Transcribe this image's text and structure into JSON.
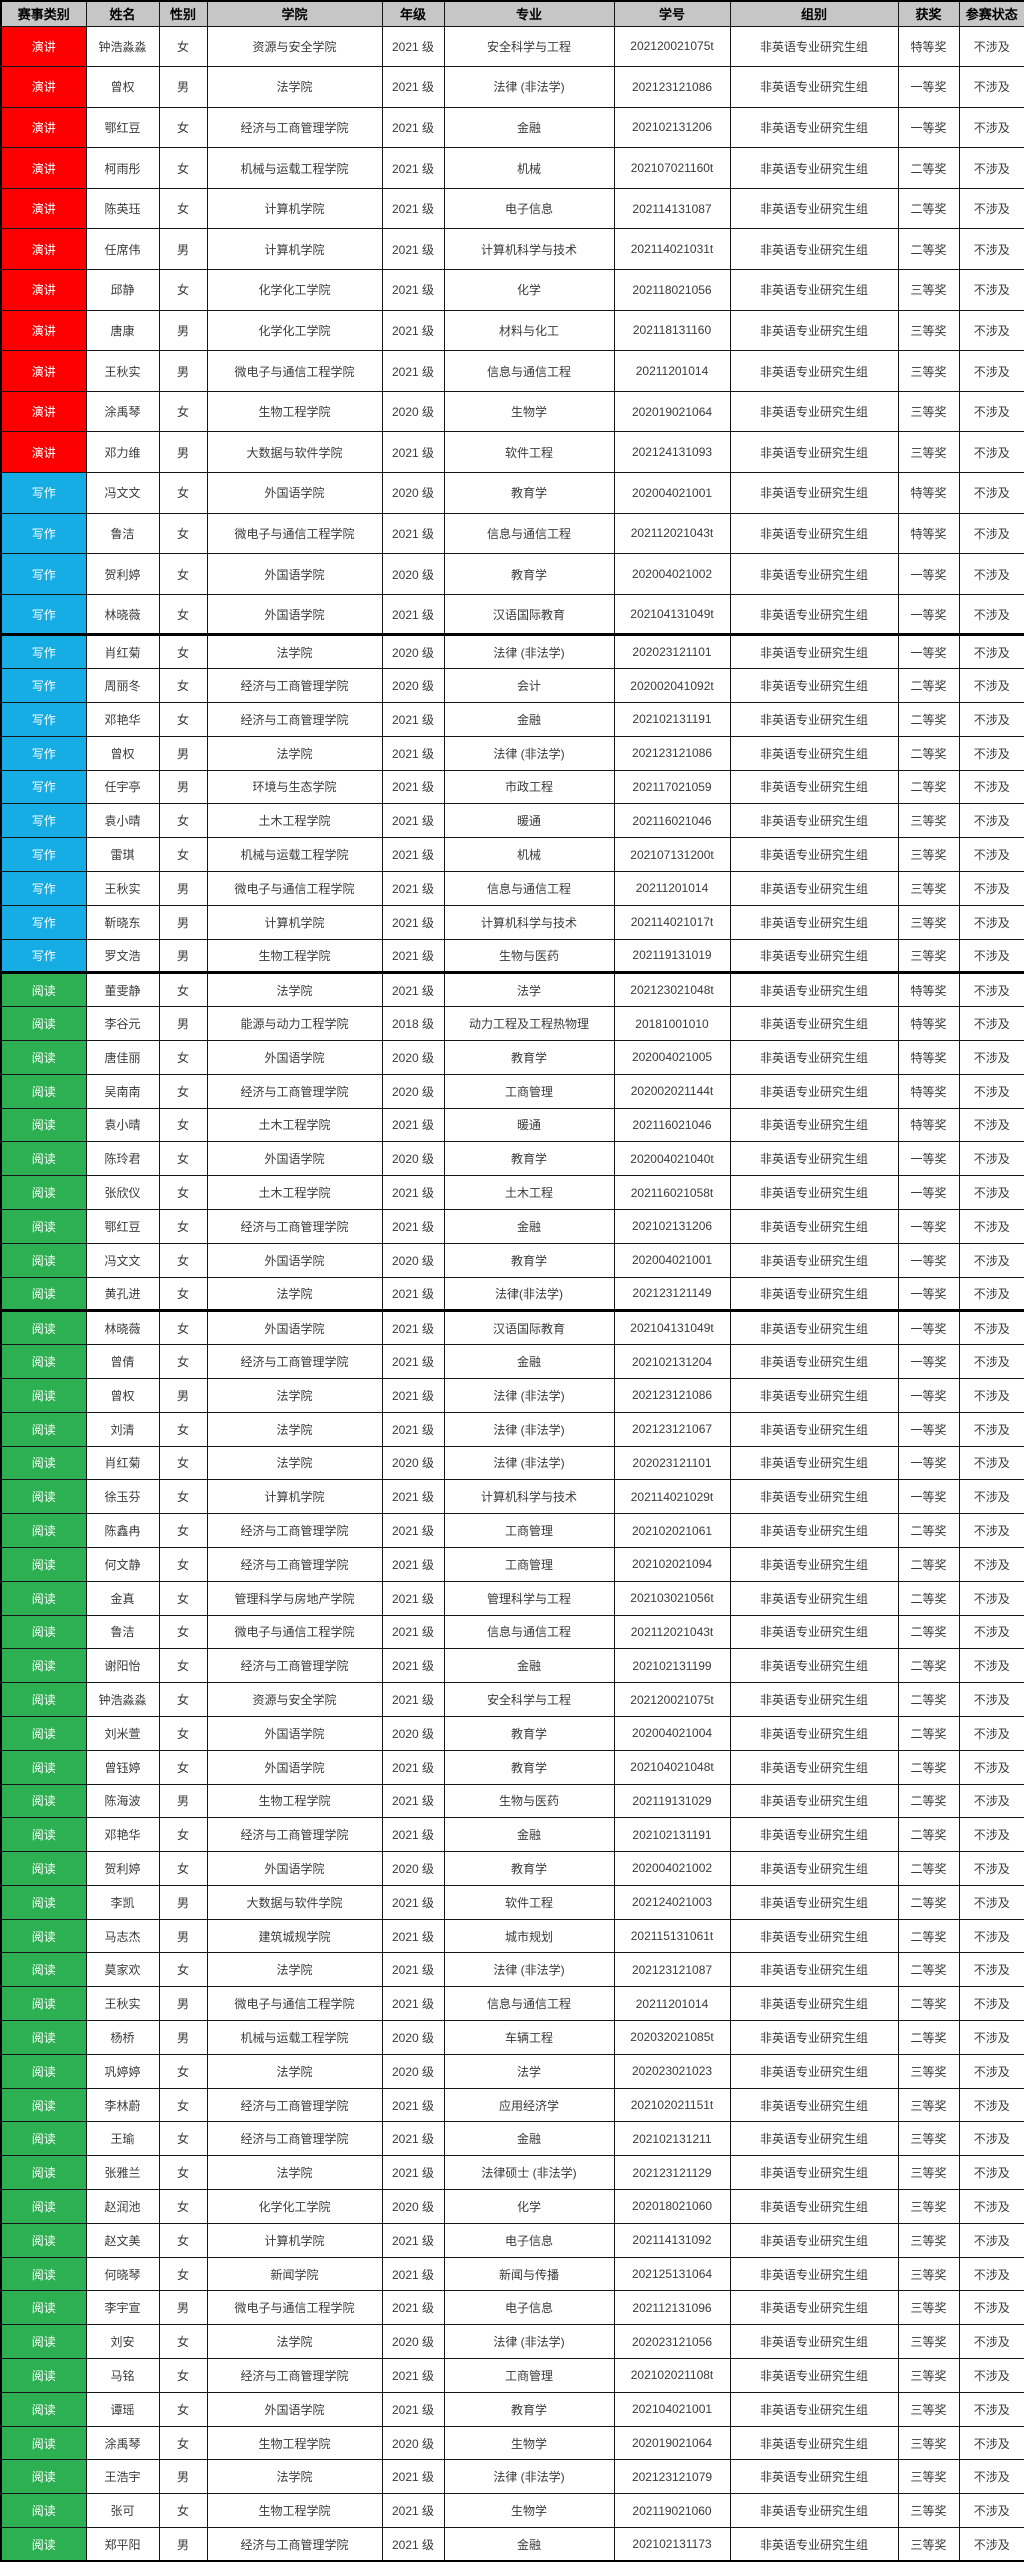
{
  "colors": {
    "header_bg": "#C6C6C6",
    "border": "#161616",
    "cell_text": "#3A3A3A",
    "category_text": "#FFFFFF",
    "page_bg": "#FFFFFF"
  },
  "category_colors": {
    "演讲": "#FC0000",
    "写作": "#16ACE4",
    "阅读": "#2DB052"
  },
  "table": {
    "headers": [
      "赛事类别",
      "姓名",
      "性别",
      "学院",
      "年级",
      "专业",
      "学号",
      "组别",
      "获奖",
      "参赛状态"
    ],
    "rows": [
      [
        "演讲",
        "钟浩淼淼",
        "女",
        "资源与安全学院",
        "2021 级",
        "安全科学与工程",
        "202120021075t",
        "非英语专业研究生组",
        "特等奖",
        "不涉及"
      ],
      [
        "演讲",
        "曾权",
        "男",
        "法学院",
        "2021 级",
        "法律 (非法学)",
        "202123121086",
        "非英语专业研究生组",
        "一等奖",
        "不涉及"
      ],
      [
        "演讲",
        "鄂红豆",
        "女",
        "经济与工商管理学院",
        "2021 级",
        "金融",
        "202102131206",
        "非英语专业研究生组",
        "一等奖",
        "不涉及"
      ],
      [
        "演讲",
        "柯雨彤",
        "女",
        "机械与运载工程学院",
        "2021 级",
        "机械",
        "202107021160t",
        "非英语专业研究生组",
        "二等奖",
        "不涉及"
      ],
      [
        "演讲",
        "陈英珏",
        "女",
        "计算机学院",
        "2021 级",
        "电子信息",
        "202114131087",
        "非英语专业研究生组",
        "二等奖",
        "不涉及"
      ],
      [
        "演讲",
        "任席伟",
        "男",
        "计算机学院",
        "2021 级",
        "计算机科学与技术",
        "202114021031t",
        "非英语专业研究生组",
        "二等奖",
        "不涉及"
      ],
      [
        "演讲",
        "邱静",
        "女",
        "化学化工学院",
        "2021 级",
        "化学",
        "202118021056",
        "非英语专业研究生组",
        "三等奖",
        "不涉及"
      ],
      [
        "演讲",
        "唐康",
        "男",
        "化学化工学院",
        "2021 级",
        "材料与化工",
        "202118131160",
        "非英语专业研究生组",
        "三等奖",
        "不涉及"
      ],
      [
        "演讲",
        "王秋实",
        "男",
        "微电子与通信工程学院",
        "2021 级",
        "信息与通信工程",
        "20211201014",
        "非英语专业研究生组",
        "三等奖",
        "不涉及"
      ],
      [
        "演讲",
        "涂禹琴",
        "女",
        "生物工程学院",
        "2020 级",
        "生物学",
        "202019021064",
        "非英语专业研究生组",
        "三等奖",
        "不涉及"
      ],
      [
        "演讲",
        "邓力维",
        "男",
        "大数据与软件学院",
        "2021 级",
        "软件工程",
        "202124131093",
        "非英语专业研究生组",
        "三等奖",
        "不涉及"
      ],
      [
        "写作",
        "冯文文",
        "女",
        "外国语学院",
        "2020 级",
        "教育学",
        "202004021001",
        "非英语专业研究生组",
        "特等奖",
        "不涉及"
      ],
      [
        "写作",
        "鲁洁",
        "女",
        "微电子与通信工程学院",
        "2021 级",
        "信息与通信工程",
        "202112021043t",
        "非英语专业研究生组",
        "特等奖",
        "不涉及"
      ],
      [
        "写作",
        "贺利婷",
        "女",
        "外国语学院",
        "2020 级",
        "教育学",
        "202004021002",
        "非英语专业研究生组",
        "一等奖",
        "不涉及"
      ],
      [
        "写作",
        "林晓薇",
        "女",
        "外国语学院",
        "2021 级",
        "汉语国际教育",
        "202104131049t",
        "非英语专业研究生组",
        "一等奖",
        "不涉及"
      ],
      [
        "写作",
        "肖红菊",
        "女",
        "法学院",
        "2020 级",
        "法律 (非法学)",
        "202023121101",
        "非英语专业研究生组",
        "一等奖",
        "不涉及"
      ],
      [
        "写作",
        "周丽冬",
        "女",
        "经济与工商管理学院",
        "2020 级",
        "会计",
        "202002041092t",
        "非英语专业研究生组",
        "二等奖",
        "不涉及"
      ],
      [
        "写作",
        "邓艳华",
        "女",
        "经济与工商管理学院",
        "2021 级",
        "金融",
        "202102131191",
        "非英语专业研究生组",
        "二等奖",
        "不涉及"
      ],
      [
        "写作",
        "曾权",
        "男",
        "法学院",
        "2021 级",
        "法律 (非法学)",
        "202123121086",
        "非英语专业研究生组",
        "二等奖",
        "不涉及"
      ],
      [
        "写作",
        "任宇亭",
        "男",
        "环境与生态学院",
        "2021 级",
        "市政工程",
        "202117021059",
        "非英语专业研究生组",
        "二等奖",
        "不涉及"
      ],
      [
        "写作",
        "袁小晴",
        "女",
        "土木工程学院",
        "2021 级",
        "暖通",
        "202116021046",
        "非英语专业研究生组",
        "三等奖",
        "不涉及"
      ],
      [
        "写作",
        "雷琪",
        "女",
        "机械与运载工程学院",
        "2021 级",
        "机械",
        "202107131200t",
        "非英语专业研究生组",
        "三等奖",
        "不涉及"
      ],
      [
        "写作",
        "王秋实",
        "男",
        "微电子与通信工程学院",
        "2021 级",
        "信息与通信工程",
        "20211201014",
        "非英语专业研究生组",
        "三等奖",
        "不涉及"
      ],
      [
        "写作",
        "靳晓东",
        "男",
        "计算机学院",
        "2021 级",
        "计算机科学与技术",
        "202114021017t",
        "非英语专业研究生组",
        "三等奖",
        "不涉及"
      ],
      [
        "写作",
        "罗文浩",
        "男",
        "生物工程学院",
        "2021 级",
        "生物与医药",
        "202119131019",
        "非英语专业研究生组",
        "三等奖",
        "不涉及"
      ],
      [
        "阅读",
        "董雯静",
        "女",
        "法学院",
        "2021 级",
        "法学",
        "202123021048t",
        "非英语专业研究生组",
        "特等奖",
        "不涉及"
      ],
      [
        "阅读",
        "李谷元",
        "男",
        "能源与动力工程学院",
        "2018 级",
        "动力工程及工程热物理",
        "20181001010",
        "非英语专业研究生组",
        "特等奖",
        "不涉及"
      ],
      [
        "阅读",
        "唐佳丽",
        "女",
        "外国语学院",
        "2020 级",
        "教育学",
        "202004021005",
        "非英语专业研究生组",
        "特等奖",
        "不涉及"
      ],
      [
        "阅读",
        "吴南南",
        "女",
        "经济与工商管理学院",
        "2020 级",
        "工商管理",
        "202002021144t",
        "非英语专业研究生组",
        "特等奖",
        "不涉及"
      ],
      [
        "阅读",
        "袁小晴",
        "女",
        "土木工程学院",
        "2021 级",
        "暖通",
        "202116021046",
        "非英语专业研究生组",
        "特等奖",
        "不涉及"
      ],
      [
        "阅读",
        "陈玲君",
        "女",
        "外国语学院",
        "2020 级",
        "教育学",
        "202004021040t",
        "非英语专业研究生组",
        "一等奖",
        "不涉及"
      ],
      [
        "阅读",
        "张欣仪",
        "女",
        "土木工程学院",
        "2021 级",
        "土木工程",
        "202116021058t",
        "非英语专业研究生组",
        "一等奖",
        "不涉及"
      ],
      [
        "阅读",
        "鄂红豆",
        "女",
        "经济与工商管理学院",
        "2021 级",
        "金融",
        "202102131206",
        "非英语专业研究生组",
        "一等奖",
        "不涉及"
      ],
      [
        "阅读",
        "冯文文",
        "女",
        "外国语学院",
        "2020 级",
        "教育学",
        "202004021001",
        "非英语专业研究生组",
        "一等奖",
        "不涉及"
      ],
      [
        "阅读",
        "黄孔进",
        "女",
        "法学院",
        "2021 级",
        "法律(非法学)",
        "202123121149",
        "非英语专业研究生组",
        "一等奖",
        "不涉及"
      ],
      [
        "阅读",
        "林晓薇",
        "女",
        "外国语学院",
        "2021 级",
        "汉语国际教育",
        "202104131049t",
        "非英语专业研究生组",
        "一等奖",
        "不涉及"
      ],
      [
        "阅读",
        "曾倩",
        "女",
        "经济与工商管理学院",
        "2021 级",
        "金融",
        "202102131204",
        "非英语专业研究生组",
        "一等奖",
        "不涉及"
      ],
      [
        "阅读",
        "曾权",
        "男",
        "法学院",
        "2021 级",
        "法律 (非法学)",
        "202123121086",
        "非英语专业研究生组",
        "一等奖",
        "不涉及"
      ],
      [
        "阅读",
        "刘清",
        "女",
        "法学院",
        "2021 级",
        "法律 (非法学)",
        "202123121067",
        "非英语专业研究生组",
        "一等奖",
        "不涉及"
      ],
      [
        "阅读",
        "肖红菊",
        "女",
        "法学院",
        "2020 级",
        "法律 (非法学)",
        "202023121101",
        "非英语专业研究生组",
        "一等奖",
        "不涉及"
      ],
      [
        "阅读",
        "徐玉芬",
        "女",
        "计算机学院",
        "2021 级",
        "计算机科学与技术",
        "202114021029t",
        "非英语专业研究生组",
        "一等奖",
        "不涉及"
      ],
      [
        "阅读",
        "陈鑫冉",
        "女",
        "经济与工商管理学院",
        "2021 级",
        "工商管理",
        "202102021061",
        "非英语专业研究生组",
        "二等奖",
        "不涉及"
      ],
      [
        "阅读",
        "何文静",
        "女",
        "经济与工商管理学院",
        "2021 级",
        "工商管理",
        "202102021094",
        "非英语专业研究生组",
        "二等奖",
        "不涉及"
      ],
      [
        "阅读",
        "金真",
        "女",
        "管理科学与房地产学院",
        "2021 级",
        "管理科学与工程",
        "202103021056t",
        "非英语专业研究生组",
        "二等奖",
        "不涉及"
      ],
      [
        "阅读",
        "鲁洁",
        "女",
        "微电子与通信工程学院",
        "2021 级",
        "信息与通信工程",
        "202112021043t",
        "非英语专业研究生组",
        "二等奖",
        "不涉及"
      ],
      [
        "阅读",
        "谢阳怡",
        "女",
        "经济与工商管理学院",
        "2021 级",
        "金融",
        "202102131199",
        "非英语专业研究生组",
        "二等奖",
        "不涉及"
      ],
      [
        "阅读",
        "钟浩淼淼",
        "女",
        "资源与安全学院",
        "2021 级",
        "安全科学与工程",
        "202120021075t",
        "非英语专业研究生组",
        "二等奖",
        "不涉及"
      ],
      [
        "阅读",
        "刘米萱",
        "女",
        "外国语学院",
        "2020 级",
        "教育学",
        "202004021004",
        "非英语专业研究生组",
        "二等奖",
        "不涉及"
      ],
      [
        "阅读",
        "曾钰婷",
        "女",
        "外国语学院",
        "2021 级",
        "教育学",
        "202104021048t",
        "非英语专业研究生组",
        "二等奖",
        "不涉及"
      ],
      [
        "阅读",
        "陈海波",
        "男",
        "生物工程学院",
        "2021 级",
        "生物与医药",
        "202119131029",
        "非英语专业研究生组",
        "二等奖",
        "不涉及"
      ],
      [
        "阅读",
        "邓艳华",
        "女",
        "经济与工商管理学院",
        "2021 级",
        "金融",
        "202102131191",
        "非英语专业研究生组",
        "二等奖",
        "不涉及"
      ],
      [
        "阅读",
        "贺利婷",
        "女",
        "外国语学院",
        "2020 级",
        "教育学",
        "202004021002",
        "非英语专业研究生组",
        "二等奖",
        "不涉及"
      ],
      [
        "阅读",
        "李凯",
        "男",
        "大数据与软件学院",
        "2021 级",
        "软件工程",
        "202124021003",
        "非英语专业研究生组",
        "二等奖",
        "不涉及"
      ],
      [
        "阅读",
        "马志杰",
        "男",
        "建筑城规学院",
        "2021 级",
        "城市规划",
        "202115131061t",
        "非英语专业研究生组",
        "二等奖",
        "不涉及"
      ],
      [
        "阅读",
        "莫家欢",
        "女",
        "法学院",
        "2021 级",
        "法律 (非法学)",
        "202123121087",
        "非英语专业研究生组",
        "二等奖",
        "不涉及"
      ],
      [
        "阅读",
        "王秋实",
        "男",
        "微电子与通信工程学院",
        "2021 级",
        "信息与通信工程",
        "20211201014",
        "非英语专业研究生组",
        "二等奖",
        "不涉及"
      ],
      [
        "阅读",
        "杨桥",
        "男",
        "机械与运载工程学院",
        "2020 级",
        "车辆工程",
        "202032021085t",
        "非英语专业研究生组",
        "二等奖",
        "不涉及"
      ],
      [
        "阅读",
        "巩婷婷",
        "女",
        "法学院",
        "2020 级",
        "法学",
        "202023021023",
        "非英语专业研究生组",
        "三等奖",
        "不涉及"
      ],
      [
        "阅读",
        "李林蔚",
        "女",
        "经济与工商管理学院",
        "2021 级",
        "应用经济学",
        "202102021151t",
        "非英语专业研究生组",
        "三等奖",
        "不涉及"
      ],
      [
        "阅读",
        "王瑜",
        "女",
        "经济与工商管理学院",
        "2021 级",
        "金融",
        "202102131211",
        "非英语专业研究生组",
        "三等奖",
        "不涉及"
      ],
      [
        "阅读",
        "张雅兰",
        "女",
        "法学院",
        "2021 级",
        "法律硕士 (非法学)",
        "202123121129",
        "非英语专业研究生组",
        "三等奖",
        "不涉及"
      ],
      [
        "阅读",
        "赵润池",
        "女",
        "化学化工学院",
        "2020 级",
        "化学",
        "202018021060",
        "非英语专业研究生组",
        "三等奖",
        "不涉及"
      ],
      [
        "阅读",
        "赵文美",
        "女",
        "计算机学院",
        "2021 级",
        "电子信息",
        "202114131092",
        "非英语专业研究生组",
        "三等奖",
        "不涉及"
      ],
      [
        "阅读",
        "何晓琴",
        "女",
        "新闻学院",
        "2021 级",
        "新闻与传播",
        "202125131064",
        "非英语专业研究生组",
        "三等奖",
        "不涉及"
      ],
      [
        "阅读",
        "李宇宣",
        "男",
        "微电子与通信工程学院",
        "2021 级",
        "电子信息",
        "202112131096",
        "非英语专业研究生组",
        "三等奖",
        "不涉及"
      ],
      [
        "阅读",
        "刘安",
        "女",
        "法学院",
        "2020 级",
        "法律 (非法学)",
        "202023121056",
        "非英语专业研究生组",
        "三等奖",
        "不涉及"
      ],
      [
        "阅读",
        "马铭",
        "女",
        "经济与工商管理学院",
        "2021 级",
        "工商管理",
        "202102021108t",
        "非英语专业研究生组",
        "三等奖",
        "不涉及"
      ],
      [
        "阅读",
        "谭瑶",
        "女",
        "外国语学院",
        "2021 级",
        "教育学",
        "202104021001",
        "非英语专业研究生组",
        "三等奖",
        "不涉及"
      ],
      [
        "阅读",
        "涂禹琴",
        "女",
        "生物工程学院",
        "2020 级",
        "生物学",
        "202019021064",
        "非英语专业研究生组",
        "三等奖",
        "不涉及"
      ],
      [
        "阅读",
        "王浩宇",
        "男",
        "法学院",
        "2021 级",
        "法律 (非法学)",
        "202123121079",
        "非英语专业研究生组",
        "三等奖",
        "不涉及"
      ],
      [
        "阅读",
        "张可",
        "女",
        "生物工程学院",
        "2021 级",
        "生物学",
        "202119021060",
        "非英语专业研究生组",
        "三等奖",
        "不涉及"
      ],
      [
        "阅读",
        "郑平阳",
        "男",
        "经济与工商管理学院",
        "2021 级",
        "金融",
        "202102131173",
        "非英语专业研究生组",
        "三等奖",
        "不涉及"
      ]
    ]
  }
}
